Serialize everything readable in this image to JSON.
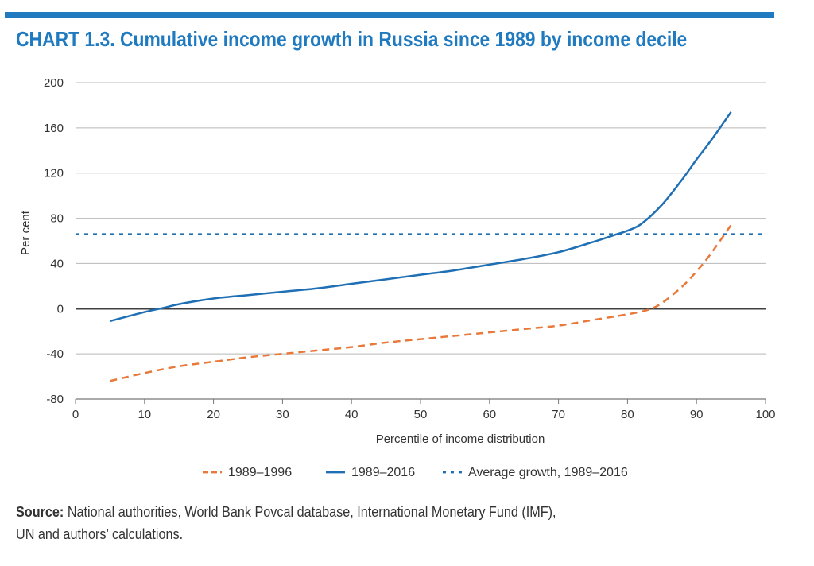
{
  "title": "CHART 1.3.  Cumulative income growth in Russia since 1989 by income decile",
  "source": {
    "label": "Source:",
    "line1": " National authorities, World Bank Povcal database, International Monetary Fund (IMF),",
    "line2": "UN and authors’ calculations."
  },
  "colors": {
    "accent": "#1f7ac0",
    "series_1989_1996": "#e8793a",
    "series_1989_2016": "#1f6fb5",
    "average": "#1f6fb5",
    "zero_line": "#404040",
    "grid": "#b8b8b8"
  },
  "chart_data": {
    "type": "line",
    "title": "CHART 1.3.  Cumulative income growth in Russia since 1989 by income decile",
    "xlabel": "Percentile of income distribution",
    "ylabel": "Per cent",
    "xlim": [
      0,
      100
    ],
    "ylim": [
      -80,
      200
    ],
    "x_ticks": [
      "0",
      "10",
      "20",
      "30",
      "40",
      "50",
      "60",
      "70",
      "80",
      "90",
      "100"
    ],
    "y_ticks": [
      "200",
      "160",
      "120",
      "80",
      "40",
      "0",
      "-40",
      "-80"
    ],
    "grid": true,
    "legend_position": "bottom",
    "series": [
      {
        "name": "1989–1996",
        "style": "dashed",
        "x": [
          5,
          10,
          15,
          20,
          25,
          30,
          35,
          40,
          45,
          50,
          55,
          60,
          65,
          70,
          75,
          80,
          83,
          85,
          88,
          90,
          92,
          95
        ],
        "y": [
          -64,
          -57,
          -51,
          -47,
          -43,
          -40,
          -37,
          -34,
          -30,
          -27,
          -24,
          -21,
          -18,
          -15,
          -10,
          -5,
          -1,
          5,
          20,
          33,
          48,
          74
        ]
      },
      {
        "name": "1989–2016",
        "style": "solid",
        "x": [
          5,
          10,
          13,
          15,
          20,
          25,
          30,
          35,
          40,
          45,
          50,
          55,
          60,
          65,
          70,
          75,
          78,
          80,
          82,
          85,
          88,
          90,
          92,
          95
        ],
        "y": [
          -11,
          -3,
          1,
          4,
          9,
          12,
          15,
          18,
          22,
          26,
          30,
          34,
          39,
          44,
          50,
          59,
          65,
          69,
          75,
          92,
          115,
          132,
          148,
          174
        ]
      },
      {
        "name": "Average growth, 1989–2016",
        "style": "dotted",
        "x": [
          0,
          100
        ],
        "y": [
          66,
          66
        ]
      }
    ]
  }
}
